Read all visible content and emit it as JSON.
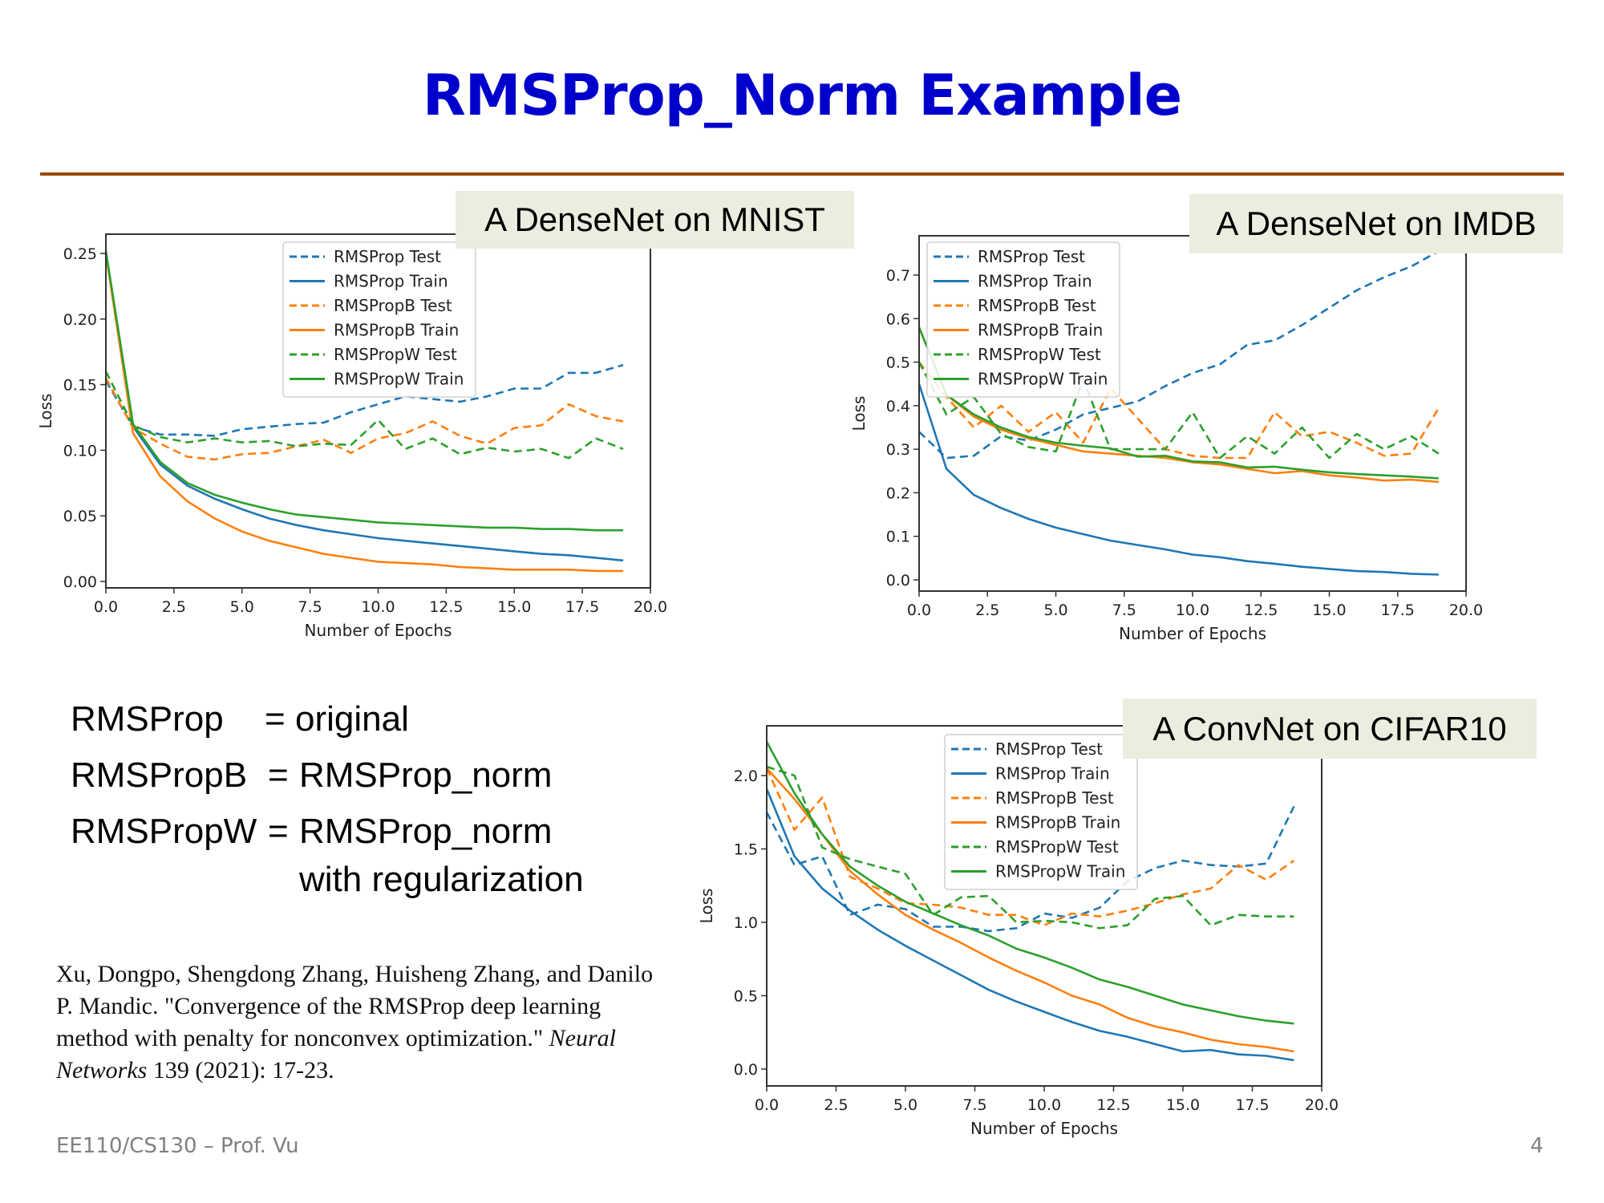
{
  "slide": {
    "title": "RMSProp_Norm Example",
    "footer_left": "EE110/CS130 – Prof. Vu",
    "page_number": "4",
    "colors": {
      "title": "#0000CC",
      "divider": "#9B4A0E",
      "label_box_bg": "#EBEEDF",
      "rmsprop": "#1F77B4",
      "rmspropb": "#FF7F0E",
      "rmspropw": "#2CA02C"
    }
  },
  "labels": {
    "mnist": "A DenseNet on MNIST",
    "imdb": "A DenseNet on IMDB",
    "cifar": "A ConvNet on CIFAR10"
  },
  "definitions": [
    {
      "name": "RMSProp",
      "eq": "=",
      "value": "original",
      "value2": ""
    },
    {
      "name": "RMSPropB",
      "eq": "=",
      "value": "RMSProp_norm",
      "value2": ""
    },
    {
      "name": "RMSPropW",
      "eq": "=",
      "value": "RMSProp_norm",
      "value2": "with regularization"
    }
  ],
  "citation": {
    "text_before": "Xu, Dongpo, Shengdong Zhang, Huisheng Zhang, and Danilo P. Mandic. \"Convergence of the RMSProp deep learning method with penalty for nonconvex optimization.\" ",
    "journal": "Neural Networks",
    "text_after": " 139 (2021): 17-23."
  },
  "chart_data": [
    {
      "id": "mnist",
      "type": "line",
      "title": "A DenseNet on MNIST",
      "xlabel": "Number of Epochs",
      "ylabel": "Loss",
      "xlim": [
        0,
        20
      ],
      "ylim": [
        -0.005,
        0.26
      ],
      "xticks": [
        "0.0",
        "2.5",
        "5.0",
        "7.5",
        "10.0",
        "12.5",
        "15.0",
        "17.5",
        "20.0"
      ],
      "yticks": [
        "0.00",
        "0.05",
        "0.10",
        "0.15",
        "0.20",
        "0.25"
      ],
      "ytick_values": [
        0,
        0.05,
        0.1,
        0.15,
        0.2,
        0.25
      ],
      "grid": false,
      "legend_position": "upper center",
      "x": [
        0,
        1,
        2,
        3,
        4,
        5,
        6,
        7,
        8,
        9,
        10,
        11,
        12,
        13,
        14,
        15,
        16,
        17,
        18,
        19
      ],
      "series": [
        {
          "name": "RMSProp Test",
          "color": "#1F77B4",
          "dash": true,
          "values": [
            0.153,
            0.118,
            0.112,
            0.112,
            0.111,
            0.116,
            0.118,
            0.12,
            0.121,
            0.129,
            0.135,
            0.141,
            0.139,
            0.137,
            0.141,
            0.147,
            0.147,
            0.159,
            0.159,
            0.165
          ]
        },
        {
          "name": "RMSProp Train",
          "color": "#1F77B4",
          "dash": false,
          "values": [
            0.25,
            0.118,
            0.089,
            0.073,
            0.063,
            0.055,
            0.048,
            0.043,
            0.039,
            0.036,
            0.033,
            0.031,
            0.029,
            0.027,
            0.025,
            0.023,
            0.021,
            0.02,
            0.018,
            0.016
          ]
        },
        {
          "name": "RMSPropB Test",
          "color": "#FF7F0E",
          "dash": true,
          "values": [
            0.155,
            0.117,
            0.105,
            0.095,
            0.093,
            0.097,
            0.098,
            0.103,
            0.108,
            0.098,
            0.109,
            0.113,
            0.122,
            0.111,
            0.105,
            0.117,
            0.119,
            0.135,
            0.126,
            0.122
          ]
        },
        {
          "name": "RMSPropB Train",
          "color": "#FF7F0E",
          "dash": false,
          "values": [
            0.25,
            0.113,
            0.08,
            0.061,
            0.048,
            0.038,
            0.031,
            0.026,
            0.021,
            0.018,
            0.015,
            0.014,
            0.013,
            0.011,
            0.01,
            0.009,
            0.009,
            0.009,
            0.008,
            0.008
          ]
        },
        {
          "name": "RMSPropW Test",
          "color": "#2CA02C",
          "dash": true,
          "values": [
            0.16,
            0.119,
            0.11,
            0.106,
            0.109,
            0.106,
            0.107,
            0.103,
            0.105,
            0.104,
            0.123,
            0.101,
            0.109,
            0.097,
            0.102,
            0.099,
            0.101,
            0.094,
            0.109,
            0.101
          ]
        },
        {
          "name": "RMSPropW Train",
          "color": "#2CA02C",
          "dash": false,
          "values": [
            0.252,
            0.12,
            0.091,
            0.075,
            0.066,
            0.06,
            0.055,
            0.051,
            0.049,
            0.047,
            0.045,
            0.044,
            0.043,
            0.042,
            0.041,
            0.041,
            0.04,
            0.04,
            0.039,
            0.039
          ]
        }
      ]
    },
    {
      "id": "imdb",
      "type": "line",
      "title": "A DenseNet on IMDB",
      "xlabel": "Number of Epochs",
      "ylabel": "Loss",
      "xlim": [
        0,
        20
      ],
      "ylim": [
        -0.02,
        0.79
      ],
      "xticks": [
        "0.0",
        "2.5",
        "5.0",
        "7.5",
        "10.0",
        "12.5",
        "15.0",
        "17.5",
        "20.0"
      ],
      "yticks": [
        "0.0",
        "0.1",
        "0.2",
        "0.3",
        "0.4",
        "0.5",
        "0.6",
        "0.7"
      ],
      "ytick_values": [
        0,
        0.1,
        0.2,
        0.3,
        0.4,
        0.5,
        0.6,
        0.7
      ],
      "grid": false,
      "legend_position": "upper left",
      "x": [
        0,
        1,
        2,
        3,
        4,
        5,
        6,
        7,
        8,
        9,
        10,
        11,
        12,
        13,
        14,
        15,
        16,
        17,
        18,
        19
      ],
      "series": [
        {
          "name": "RMSProp Test",
          "color": "#1F77B4",
          "dash": true,
          "values": [
            0.34,
            0.28,
            0.285,
            0.33,
            0.32,
            0.345,
            0.38,
            0.395,
            0.41,
            0.445,
            0.475,
            0.495,
            0.54,
            0.55,
            0.585,
            0.625,
            0.665,
            0.695,
            0.72,
            0.755
          ]
        },
        {
          "name": "RMSProp Train",
          "color": "#1F77B4",
          "dash": false,
          "values": [
            0.45,
            0.255,
            0.195,
            0.165,
            0.14,
            0.12,
            0.105,
            0.09,
            0.08,
            0.07,
            0.058,
            0.052,
            0.043,
            0.037,
            0.03,
            0.025,
            0.02,
            0.018,
            0.014,
            0.012
          ]
        },
        {
          "name": "RMSPropB Test",
          "color": "#FF7F0E",
          "dash": true,
          "values": [
            0.5,
            0.42,
            0.35,
            0.4,
            0.34,
            0.385,
            0.315,
            0.44,
            0.37,
            0.3,
            0.285,
            0.28,
            0.28,
            0.385,
            0.33,
            0.34,
            0.315,
            0.285,
            0.29,
            0.395
          ]
        },
        {
          "name": "RMSPropB Train",
          "color": "#FF7F0E",
          "dash": false,
          "values": [
            0.58,
            0.425,
            0.375,
            0.345,
            0.325,
            0.31,
            0.295,
            0.29,
            0.285,
            0.28,
            0.27,
            0.265,
            0.255,
            0.245,
            0.25,
            0.24,
            0.235,
            0.228,
            0.23,
            0.225
          ]
        },
        {
          "name": "RMSPropW Test",
          "color": "#2CA02C",
          "dash": true,
          "values": [
            0.5,
            0.38,
            0.42,
            0.335,
            0.305,
            0.295,
            0.46,
            0.3,
            0.3,
            0.3,
            0.385,
            0.28,
            0.33,
            0.29,
            0.35,
            0.28,
            0.335,
            0.3,
            0.33,
            0.29
          ]
        },
        {
          "name": "RMSPropW Train",
          "color": "#2CA02C",
          "dash": false,
          "values": [
            0.58,
            0.425,
            0.38,
            0.35,
            0.328,
            0.315,
            0.308,
            0.302,
            0.283,
            0.285,
            0.272,
            0.27,
            0.258,
            0.26,
            0.253,
            0.247,
            0.243,
            0.24,
            0.237,
            0.233
          ]
        }
      ]
    },
    {
      "id": "cifar",
      "type": "line",
      "title": "A ConvNet on CIFAR10",
      "xlabel": "Number of Epochs",
      "ylabel": "Loss",
      "xlim": [
        0,
        20
      ],
      "ylim": [
        -0.04,
        2.34
      ],
      "xticks": [
        "0.0",
        "2.5",
        "5.0",
        "7.5",
        "10.0",
        "12.5",
        "15.0",
        "17.5",
        "20.0"
      ],
      "yticks": [
        "0.0",
        "0.5",
        "1.0",
        "1.5",
        "2.0"
      ],
      "ytick_values": [
        0,
        0.5,
        1.0,
        1.5,
        2.0
      ],
      "grid": false,
      "legend_position": "upper center",
      "x": [
        0,
        1,
        2,
        3,
        4,
        5,
        6,
        7,
        8,
        9,
        10,
        11,
        12,
        13,
        14,
        15,
        16,
        17,
        18,
        19
      ],
      "series": [
        {
          "name": "RMSProp Test",
          "color": "#1F77B4",
          "dash": true,
          "values": [
            1.75,
            1.39,
            1.45,
            1.05,
            1.12,
            1.09,
            0.97,
            0.97,
            0.94,
            0.96,
            1.06,
            1.03,
            1.1,
            1.28,
            1.37,
            1.42,
            1.39,
            1.38,
            1.4,
            1.79
          ]
        },
        {
          "name": "RMSProp Train",
          "color": "#1F77B4",
          "dash": false,
          "values": [
            1.91,
            1.45,
            1.23,
            1.08,
            0.95,
            0.84,
            0.74,
            0.64,
            0.54,
            0.46,
            0.39,
            0.32,
            0.26,
            0.22,
            0.17,
            0.12,
            0.13,
            0.1,
            0.09,
            0.06
          ]
        },
        {
          "name": "RMSPropB Test",
          "color": "#FF7F0E",
          "dash": true,
          "values": [
            2.05,
            1.63,
            1.85,
            1.31,
            1.23,
            1.13,
            1.12,
            1.1,
            1.05,
            1.05,
            0.98,
            1.06,
            1.04,
            1.08,
            1.13,
            1.19,
            1.23,
            1.39,
            1.29,
            1.42
          ]
        },
        {
          "name": "RMSPropB Train",
          "color": "#FF7F0E",
          "dash": false,
          "values": [
            2.05,
            1.84,
            1.6,
            1.35,
            1.19,
            1.05,
            0.95,
            0.86,
            0.76,
            0.67,
            0.59,
            0.5,
            0.44,
            0.35,
            0.29,
            0.25,
            0.2,
            0.17,
            0.15,
            0.12
          ]
        },
        {
          "name": "RMSPropW Test",
          "color": "#2CA02C",
          "dash": true,
          "values": [
            2.06,
            2.0,
            1.51,
            1.43,
            1.38,
            1.33,
            1.05,
            1.17,
            1.18,
            1.0,
            1.01,
            1.0,
            0.96,
            0.98,
            1.16,
            1.18,
            0.98,
            1.05,
            1.04,
            1.04
          ]
        },
        {
          "name": "RMSPropW Train",
          "color": "#2CA02C",
          "dash": false,
          "values": [
            2.23,
            1.88,
            1.6,
            1.38,
            1.25,
            1.14,
            1.06,
            0.98,
            0.91,
            0.82,
            0.76,
            0.69,
            0.61,
            0.56,
            0.5,
            0.44,
            0.4,
            0.36,
            0.33,
            0.31
          ]
        }
      ]
    }
  ]
}
